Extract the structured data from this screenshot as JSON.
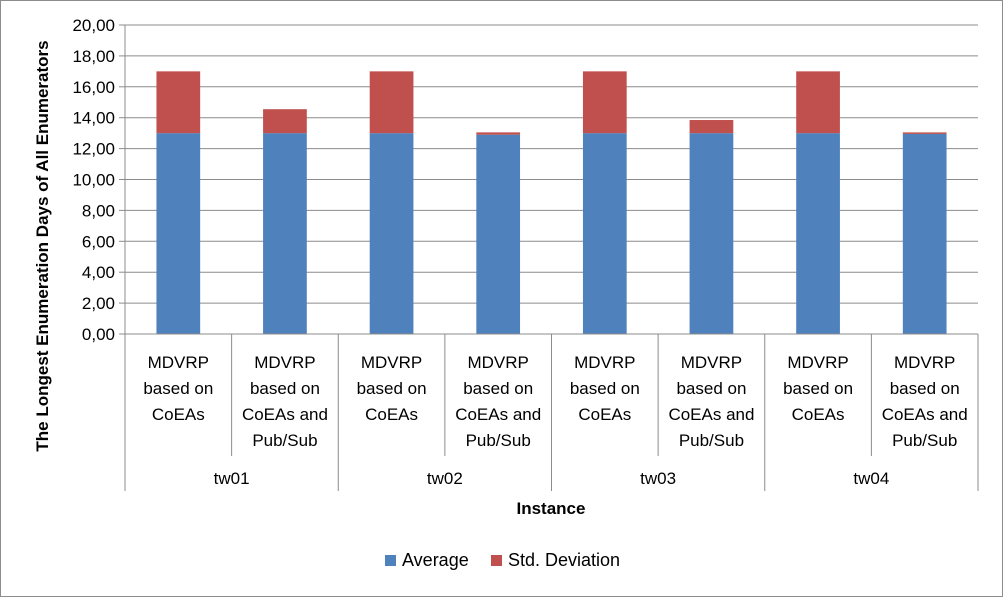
{
  "chart_data": {
    "type": "bar",
    "stacked": true,
    "ylabel": "The Longest Enumeration Days of All Enumerators",
    "xlabel": "Instance",
    "ylim": [
      0,
      20
    ],
    "ytick_step": 2,
    "ytick_labels": [
      "0,00",
      "2,00",
      "4,00",
      "6,00",
      "8,00",
      "10,00",
      "12,00",
      "14,00",
      "16,00",
      "18,00",
      "20,00"
    ],
    "grid": true,
    "legend_position": "bottom",
    "groups": [
      {
        "label": "tw01",
        "categories": [
          [
            "MDVRP",
            "based on",
            "CoEAs"
          ],
          [
            "MDVRP",
            "based on",
            "CoEAs and",
            "Pub/Sub"
          ]
        ]
      },
      {
        "label": "tw02",
        "categories": [
          [
            "MDVRP",
            "based on",
            "CoEAs"
          ],
          [
            "MDVRP",
            "based on",
            "CoEAs and",
            "Pub/Sub"
          ]
        ]
      },
      {
        "label": "tw03",
        "categories": [
          [
            "MDVRP",
            "based on",
            "CoEAs"
          ],
          [
            "MDVRP",
            "based on",
            "CoEAs and",
            "Pub/Sub"
          ]
        ]
      },
      {
        "label": "tw04",
        "categories": [
          [
            "MDVRP",
            "based on",
            "CoEAs"
          ],
          [
            "MDVRP",
            "based on",
            "CoEAs and",
            "Pub/Sub"
          ]
        ]
      }
    ],
    "series": [
      {
        "name": "Average",
        "color": "#4f81bd",
        "values": [
          13.0,
          13.0,
          13.0,
          12.9,
          13.0,
          13.0,
          13.0,
          12.95
        ]
      },
      {
        "name": "Std. Deviation",
        "color": "#c0504d",
        "values": [
          4.0,
          1.55,
          4.0,
          0.15,
          4.0,
          0.85,
          4.0,
          0.1
        ]
      }
    ]
  }
}
